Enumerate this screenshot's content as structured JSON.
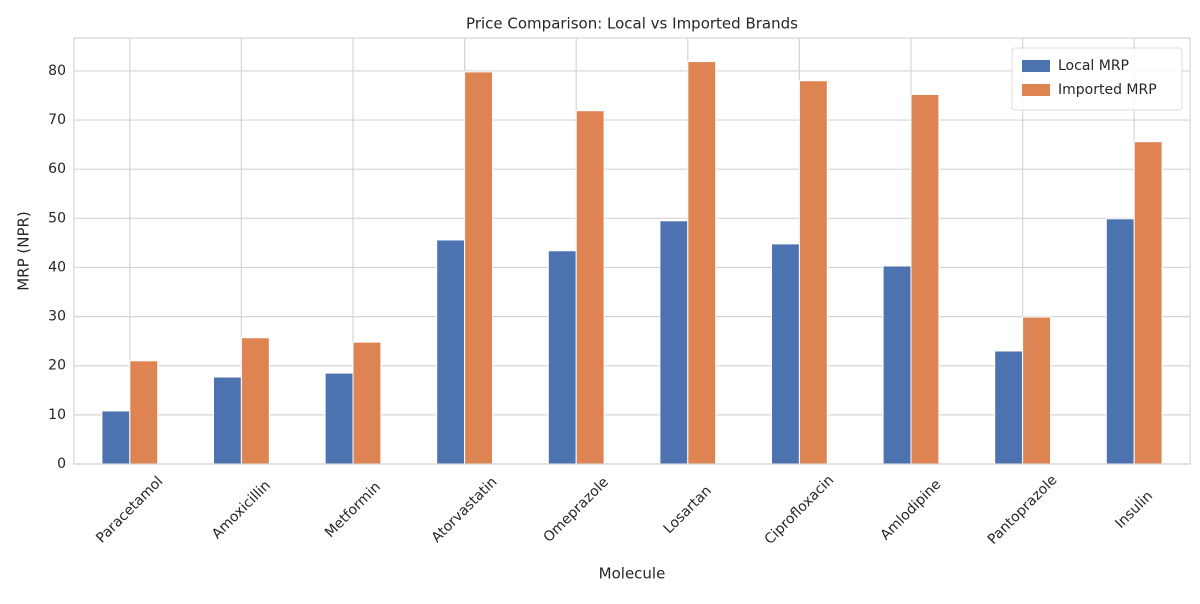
{
  "chart_data": {
    "type": "bar",
    "title": "Price Comparison: Local vs Imported Brands",
    "x_label": "Molecule",
    "y_label": "MRP (NPR)",
    "categories": [
      "Paracetamol",
      "Amoxicillin",
      "Metformin",
      "Atorvastatin",
      "Omeprazole",
      "Losartan",
      "Ciprofloxacin",
      "Amlodipine",
      "Pantoprazole",
      "Insulin"
    ],
    "series": [
      {
        "name": "Local MRP",
        "color": "#4c72b0",
        "values": [
          10.8,
          17.7,
          18.5,
          45.6,
          43.4,
          49.5,
          44.8,
          40.3,
          23.0,
          49.9
        ]
      },
      {
        "name": "Imported MRP",
        "color": "#dd8452",
        "values": [
          21.0,
          25.7,
          24.8,
          79.8,
          71.9,
          81.9,
          78.0,
          75.2,
          29.9,
          65.6
        ]
      }
    ],
    "ylim": [
      0,
      86.7
    ],
    "yticks": [
      0,
      10,
      20,
      30,
      40,
      50,
      60,
      70,
      80
    ],
    "grid": true,
    "legend": "upper right"
  }
}
